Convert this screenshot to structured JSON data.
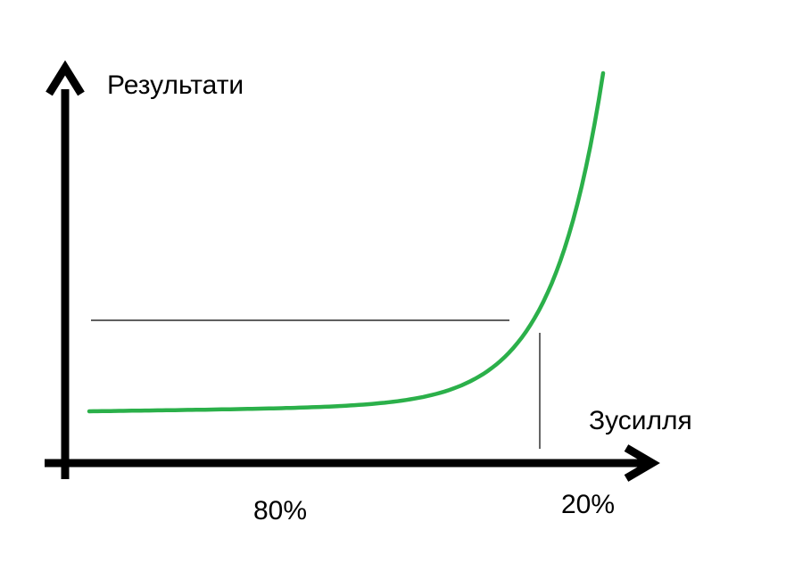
{
  "chart_data": {
    "type": "line",
    "title": "",
    "xlabel": "Зусилля",
    "ylabel": "Результати",
    "segment_labels": [
      "80%",
      "20%"
    ],
    "series": [
      {
        "values_shape": "exponential",
        "color": "#2bb04a"
      }
    ],
    "grid": false,
    "legend": "none"
  },
  "colors": {
    "axis": "#000000",
    "curve": "#2bb04a",
    "guide": "#000000"
  }
}
